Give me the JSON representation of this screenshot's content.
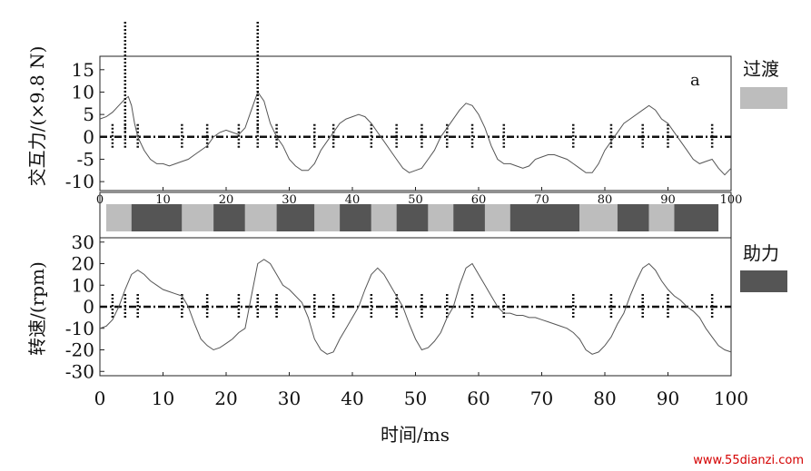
{
  "watermark": "www.55dianzi.com",
  "chart_data": [
    {
      "id": "top",
      "type": "line",
      "panel_label": "a",
      "ylabel": "交互力/(×9.8 N)",
      "xlim": [
        0,
        100
      ],
      "ylim": [
        -12,
        18
      ],
      "yticks": [
        15,
        10,
        5,
        0,
        -5,
        -10
      ],
      "xticks": [
        0,
        10,
        20,
        30,
        40,
        50,
        60,
        70,
        80,
        90,
        100
      ],
      "zero_line": 0,
      "series": [
        {
          "x": [
            0,
            1,
            2,
            3,
            4,
            4.5,
            5,
            5.5,
            6,
            7,
            8,
            9,
            10,
            11,
            12,
            13,
            14,
            15,
            16,
            17,
            18,
            19,
            20,
            21,
            22,
            23,
            24,
            25,
            26,
            27,
            28,
            29,
            30,
            31,
            32,
            33,
            34,
            35,
            36,
            37,
            38,
            39,
            40,
            41,
            42,
            43,
            44,
            45,
            46,
            47,
            48,
            49,
            50,
            51,
            52,
            53,
            54,
            55,
            56,
            57,
            58,
            59,
            60,
            61,
            62,
            63,
            64,
            65,
            66,
            67,
            68,
            69,
            70,
            71,
            72,
            73,
            74,
            75,
            76,
            77,
            78,
            79,
            80,
            81,
            82,
            83,
            84,
            85,
            86,
            87,
            88,
            89,
            90,
            91,
            92,
            93,
            94,
            95,
            96,
            97,
            98,
            99,
            100
          ],
          "y": [
            4,
            4.5,
            5.5,
            7,
            8.5,
            9,
            7,
            3,
            0,
            -3,
            -5,
            -6,
            -6,
            -6.5,
            -6,
            -5.5,
            -5,
            -4,
            -3,
            -2,
            0,
            1,
            1.5,
            1,
            0.5,
            2,
            6,
            10,
            8,
            3,
            0,
            -2,
            -5,
            -6.5,
            -7.5,
            -7.5,
            -6,
            -3,
            -1,
            1,
            3,
            4,
            4.5,
            5,
            4.5,
            3,
            1,
            -1,
            -3,
            -5,
            -7,
            -8,
            -7.5,
            -7,
            -5,
            -3,
            0,
            2,
            4,
            6,
            7.5,
            7,
            5,
            2,
            -2,
            -5,
            -6,
            -6,
            -6.5,
            -7,
            -6.5,
            -5,
            -4.5,
            -4,
            -4,
            -4.5,
            -5,
            -6,
            -7,
            -8,
            -8,
            -6,
            -3,
            -1,
            1,
            3,
            4,
            5,
            6,
            7,
            6,
            4,
            3,
            1,
            -1,
            -3,
            -5,
            -6,
            -5.5,
            -5,
            -7,
            -8.5,
            -7
          ]
        }
      ],
      "markers_x": [
        2,
        4,
        6,
        13,
        17,
        22,
        25,
        28,
        34,
        37,
        43,
        47,
        51,
        55,
        59,
        64,
        75,
        81,
        86,
        90,
        97
      ]
    },
    {
      "id": "mid",
      "type": "table",
      "categories": [
        "过渡",
        "助力"
      ],
      "segments": [
        {
          "from": 1,
          "to": 5,
          "state": "过渡"
        },
        {
          "from": 5,
          "to": 13,
          "state": "助力"
        },
        {
          "from": 13,
          "to": 18,
          "state": "过渡"
        },
        {
          "from": 18,
          "to": 23,
          "state": "助力"
        },
        {
          "from": 23,
          "to": 28,
          "state": "过渡"
        },
        {
          "from": 28,
          "to": 34,
          "state": "助力"
        },
        {
          "from": 34,
          "to": 38,
          "state": "过渡"
        },
        {
          "from": 38,
          "to": 43,
          "state": "助力"
        },
        {
          "from": 43,
          "to": 47,
          "state": "过渡"
        },
        {
          "from": 47,
          "to": 52,
          "state": "助力"
        },
        {
          "from": 52,
          "to": 56,
          "state": "过渡"
        },
        {
          "from": 56,
          "to": 61,
          "state": "助力"
        },
        {
          "from": 61,
          "to": 65,
          "state": "过渡"
        },
        {
          "from": 65,
          "to": 76,
          "state": "助力"
        },
        {
          "from": 76,
          "to": 82,
          "state": "过渡"
        },
        {
          "from": 82,
          "to": 87,
          "state": "助力"
        },
        {
          "from": 87,
          "to": 91,
          "state": "过渡"
        },
        {
          "from": 91,
          "to": 98,
          "state": "助力"
        }
      ],
      "colors": {
        "过渡": "#bdbdbd",
        "助力": "#555555"
      }
    },
    {
      "id": "bottom",
      "type": "line",
      "xlabel": "时间/ms",
      "ylabel": "转速/(rpm)",
      "xlim": [
        0,
        100
      ],
      "ylim": [
        -32,
        32
      ],
      "yticks": [
        30,
        20,
        10,
        0,
        -10,
        -20,
        -30
      ],
      "xticks": [
        0,
        10,
        20,
        30,
        40,
        50,
        60,
        70,
        80,
        90,
        100
      ],
      "zero_line": 0,
      "series": [
        {
          "x": [
            0,
            1,
            2,
            3,
            4,
            5,
            6,
            7,
            8,
            9,
            10,
            11,
            12,
            13,
            14,
            15,
            16,
            17,
            18,
            19,
            20,
            21,
            22,
            23,
            24,
            25,
            26,
            27,
            28,
            29,
            30,
            31,
            32,
            33,
            34,
            35,
            36,
            37,
            38,
            39,
            40,
            41,
            42,
            43,
            44,
            45,
            46,
            47,
            48,
            49,
            50,
            51,
            52,
            53,
            54,
            55,
            56,
            57,
            58,
            59,
            60,
            61,
            62,
            63,
            64,
            65,
            66,
            67,
            68,
            69,
            70,
            71,
            72,
            73,
            74,
            75,
            76,
            77,
            78,
            79,
            80,
            81,
            82,
            83,
            84,
            85,
            86,
            87,
            88,
            89,
            90,
            91,
            92,
            93,
            94,
            95,
            96,
            97,
            98,
            99,
            100
          ],
          "y": [
            -10,
            -9,
            -6,
            0,
            8,
            15,
            17,
            15,
            12,
            10,
            8,
            7,
            6,
            5,
            0,
            -8,
            -15,
            -18,
            -20,
            -19,
            -17,
            -15,
            -12,
            -10,
            5,
            20,
            22,
            20,
            15,
            10,
            8,
            5,
            2,
            -5,
            -15,
            -20,
            -22,
            -21,
            -15,
            -10,
            -5,
            0,
            8,
            15,
            18,
            15,
            10,
            5,
            0,
            -8,
            -15,
            -20,
            -19,
            -16,
            -12,
            -5,
            0,
            10,
            18,
            20,
            15,
            10,
            5,
            0,
            -3,
            -3,
            -4,
            -4,
            -5,
            -5,
            -6,
            -7,
            -8,
            -9,
            -10,
            -12,
            -15,
            -20,
            -22,
            -21,
            -18,
            -14,
            -8,
            -3,
            5,
            12,
            18,
            20,
            17,
            12,
            8,
            5,
            3,
            0,
            -2,
            -5,
            -10,
            -14,
            -18,
            -20,
            -21
          ]
        }
      ],
      "markers_x": [
        2,
        4,
        6,
        13,
        17,
        22,
        25,
        28,
        34,
        37,
        43,
        47,
        51,
        55,
        59,
        64,
        75,
        81,
        86,
        90,
        97
      ]
    }
  ],
  "legend": [
    {
      "label": "过渡",
      "color": "#bdbdbd"
    },
    {
      "label": "助力",
      "color": "#555555"
    }
  ]
}
